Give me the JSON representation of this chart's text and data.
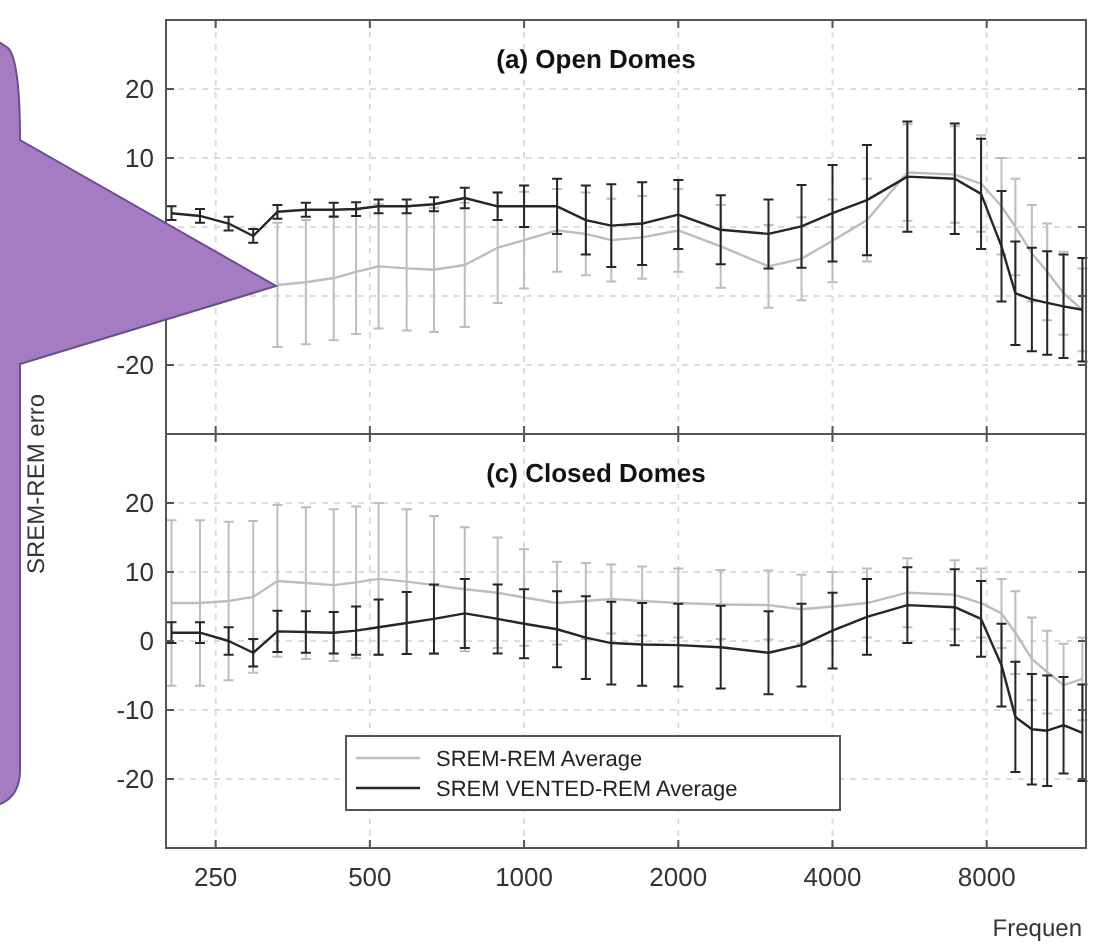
{
  "chart_data": [
    {
      "type": "line",
      "title": "(a) Open Domes",
      "ylabel": "SREM-REM erro",
      "log": "x",
      "grid": true,
      "legend": false,
      "tick_labels": "y",
      "marker": "none",
      "line_style": "solid",
      "xlim": [
        200,
        12500
      ],
      "xticks": [
        250,
        500,
        1000,
        2000,
        4000,
        8000
      ],
      "ylim": [
        -30,
        30
      ],
      "yticks": [
        -20,
        {
          "value": -10,
          "label": null
        },
        {
          "value": 0,
          "label": null
        },
        10,
        20
      ],
      "x": [
        205,
        233,
        265,
        296,
        330,
        375,
        425,
        470,
        520,
        590,
        667,
        766,
        888,
        1000,
        1160,
        1320,
        1480,
        1700,
        2000,
        2420,
        3000,
        3480,
        4000,
        4670,
        5600,
        6930,
        7800,
        8550,
        9100,
        9800,
        10500,
        11300,
        12300
      ],
      "series": [
        {
          "color": "#bdbdbd",
          "values": [
            null,
            null,
            null,
            null,
            -8.4,
            -8,
            -7.4,
            -6.5,
            -5.7,
            -6,
            -6.2,
            -5.5,
            -3,
            -1.9,
            -0.5,
            -1,
            -1.9,
            -1.5,
            -0.5,
            -2.8,
            -5.7,
            -4.6,
            -2,
            1,
            7.9,
            7.6,
            6.3,
            3,
            0,
            -3.8,
            -6.5,
            -9.6,
            -12
          ],
          "errors": [
            null,
            null,
            null,
            null,
            9,
            9,
            9,
            9,
            9,
            9,
            9,
            9,
            8,
            7,
            6,
            6,
            6,
            6,
            6,
            6,
            6,
            6,
            6,
            6,
            7,
            7,
            7,
            7,
            7,
            7,
            7,
            6,
            6
          ]
        },
        {
          "color": "#262626",
          "values": [
            2,
            1.6,
            0.5,
            -1.3,
            2.2,
            2.5,
            2.5,
            2.6,
            3,
            3,
            3.3,
            4.2,
            3,
            3,
            3,
            1,
            0.2,
            0.5,
            1.8,
            -0.4,
            -1,
            0.1,
            2,
            3.9,
            7.3,
            7,
            4.8,
            -2.8,
            -9.6,
            -10.5,
            -11,
            -11.5,
            -12
          ],
          "errors": [
            1,
            1,
            1,
            1,
            1,
            1,
            1,
            1,
            1,
            1,
            1,
            1.5,
            2,
            3,
            4,
            5,
            6,
            6,
            5,
            5,
            5,
            6,
            7,
            8,
            8,
            8,
            8,
            8,
            7.5,
            7.5,
            7.5,
            7.5,
            7.5
          ]
        }
      ]
    },
    {
      "type": "line",
      "title": "(c) Closed Domes",
      "xlabel": "Frequen",
      "log": "x",
      "grid": true,
      "legend": "bottom left",
      "marker": "none",
      "line_style": "solid",
      "xlim": [
        200,
        12500
      ],
      "xticks": [
        250,
        500,
        1000,
        2000,
        4000,
        8000
      ],
      "ylim": [
        -30,
        30
      ],
      "yticks": [
        -20,
        -10,
        0,
        10,
        20
      ],
      "x": [
        205,
        233,
        265,
        296,
        330,
        375,
        425,
        470,
        520,
        590,
        667,
        766,
        888,
        1000,
        1160,
        1320,
        1480,
        1700,
        2000,
        2420,
        3000,
        3480,
        4000,
        4670,
        5600,
        6930,
        7800,
        8550,
        9100,
        9800,
        10500,
        11300,
        12300
      ],
      "series": [
        {
          "name": "SREM-REM Average",
          "color": "#bdbdbd",
          "values": [
            5.5,
            5.5,
            5.8,
            6.4,
            8.7,
            8.4,
            8.1,
            8.5,
            9,
            8.6,
            8.1,
            7.5,
            7,
            6.3,
            5.5,
            5.8,
            6.1,
            5.8,
            5.5,
            5.3,
            5.2,
            4.6,
            5,
            5.5,
            7,
            6.7,
            5.5,
            4,
            1.2,
            -2.6,
            -4.5,
            -6.4,
            -5.5
          ],
          "errors": [
            12,
            12,
            11.5,
            11,
            11,
            11,
            11,
            11,
            11,
            10.5,
            10,
            9,
            8,
            7,
            6,
            5.5,
            5,
            5,
            5,
            5,
            5,
            5,
            5,
            5,
            5,
            5,
            5,
            5,
            6,
            6,
            6,
            6,
            6
          ]
        },
        {
          "name": "SREM VENTED-REM Average",
          "color": "#262626",
          "values": [
            1.2,
            1.2,
            0,
            -1.7,
            1.4,
            1.3,
            1.2,
            1.5,
            2,
            2.6,
            3.2,
            4,
            3.2,
            2.5,
            1.7,
            0.5,
            -0.3,
            -0.5,
            -0.6,
            -0.9,
            -1.7,
            -0.6,
            1.5,
            3.5,
            5.2,
            4.9,
            3.2,
            -3.5,
            -11,
            -12.8,
            -13,
            -12.2,
            -13.3
          ],
          "errors": [
            1.5,
            1.5,
            2,
            2,
            3,
            3,
            3,
            3.5,
            4,
            4.5,
            5,
            5,
            5,
            5,
            5.5,
            6,
            6,
            6,
            6,
            6,
            6,
            6,
            5.5,
            5.5,
            5.5,
            5.5,
            5.5,
            6,
            8,
            8,
            8,
            7,
            7
          ]
        }
      ]
    }
  ]
}
